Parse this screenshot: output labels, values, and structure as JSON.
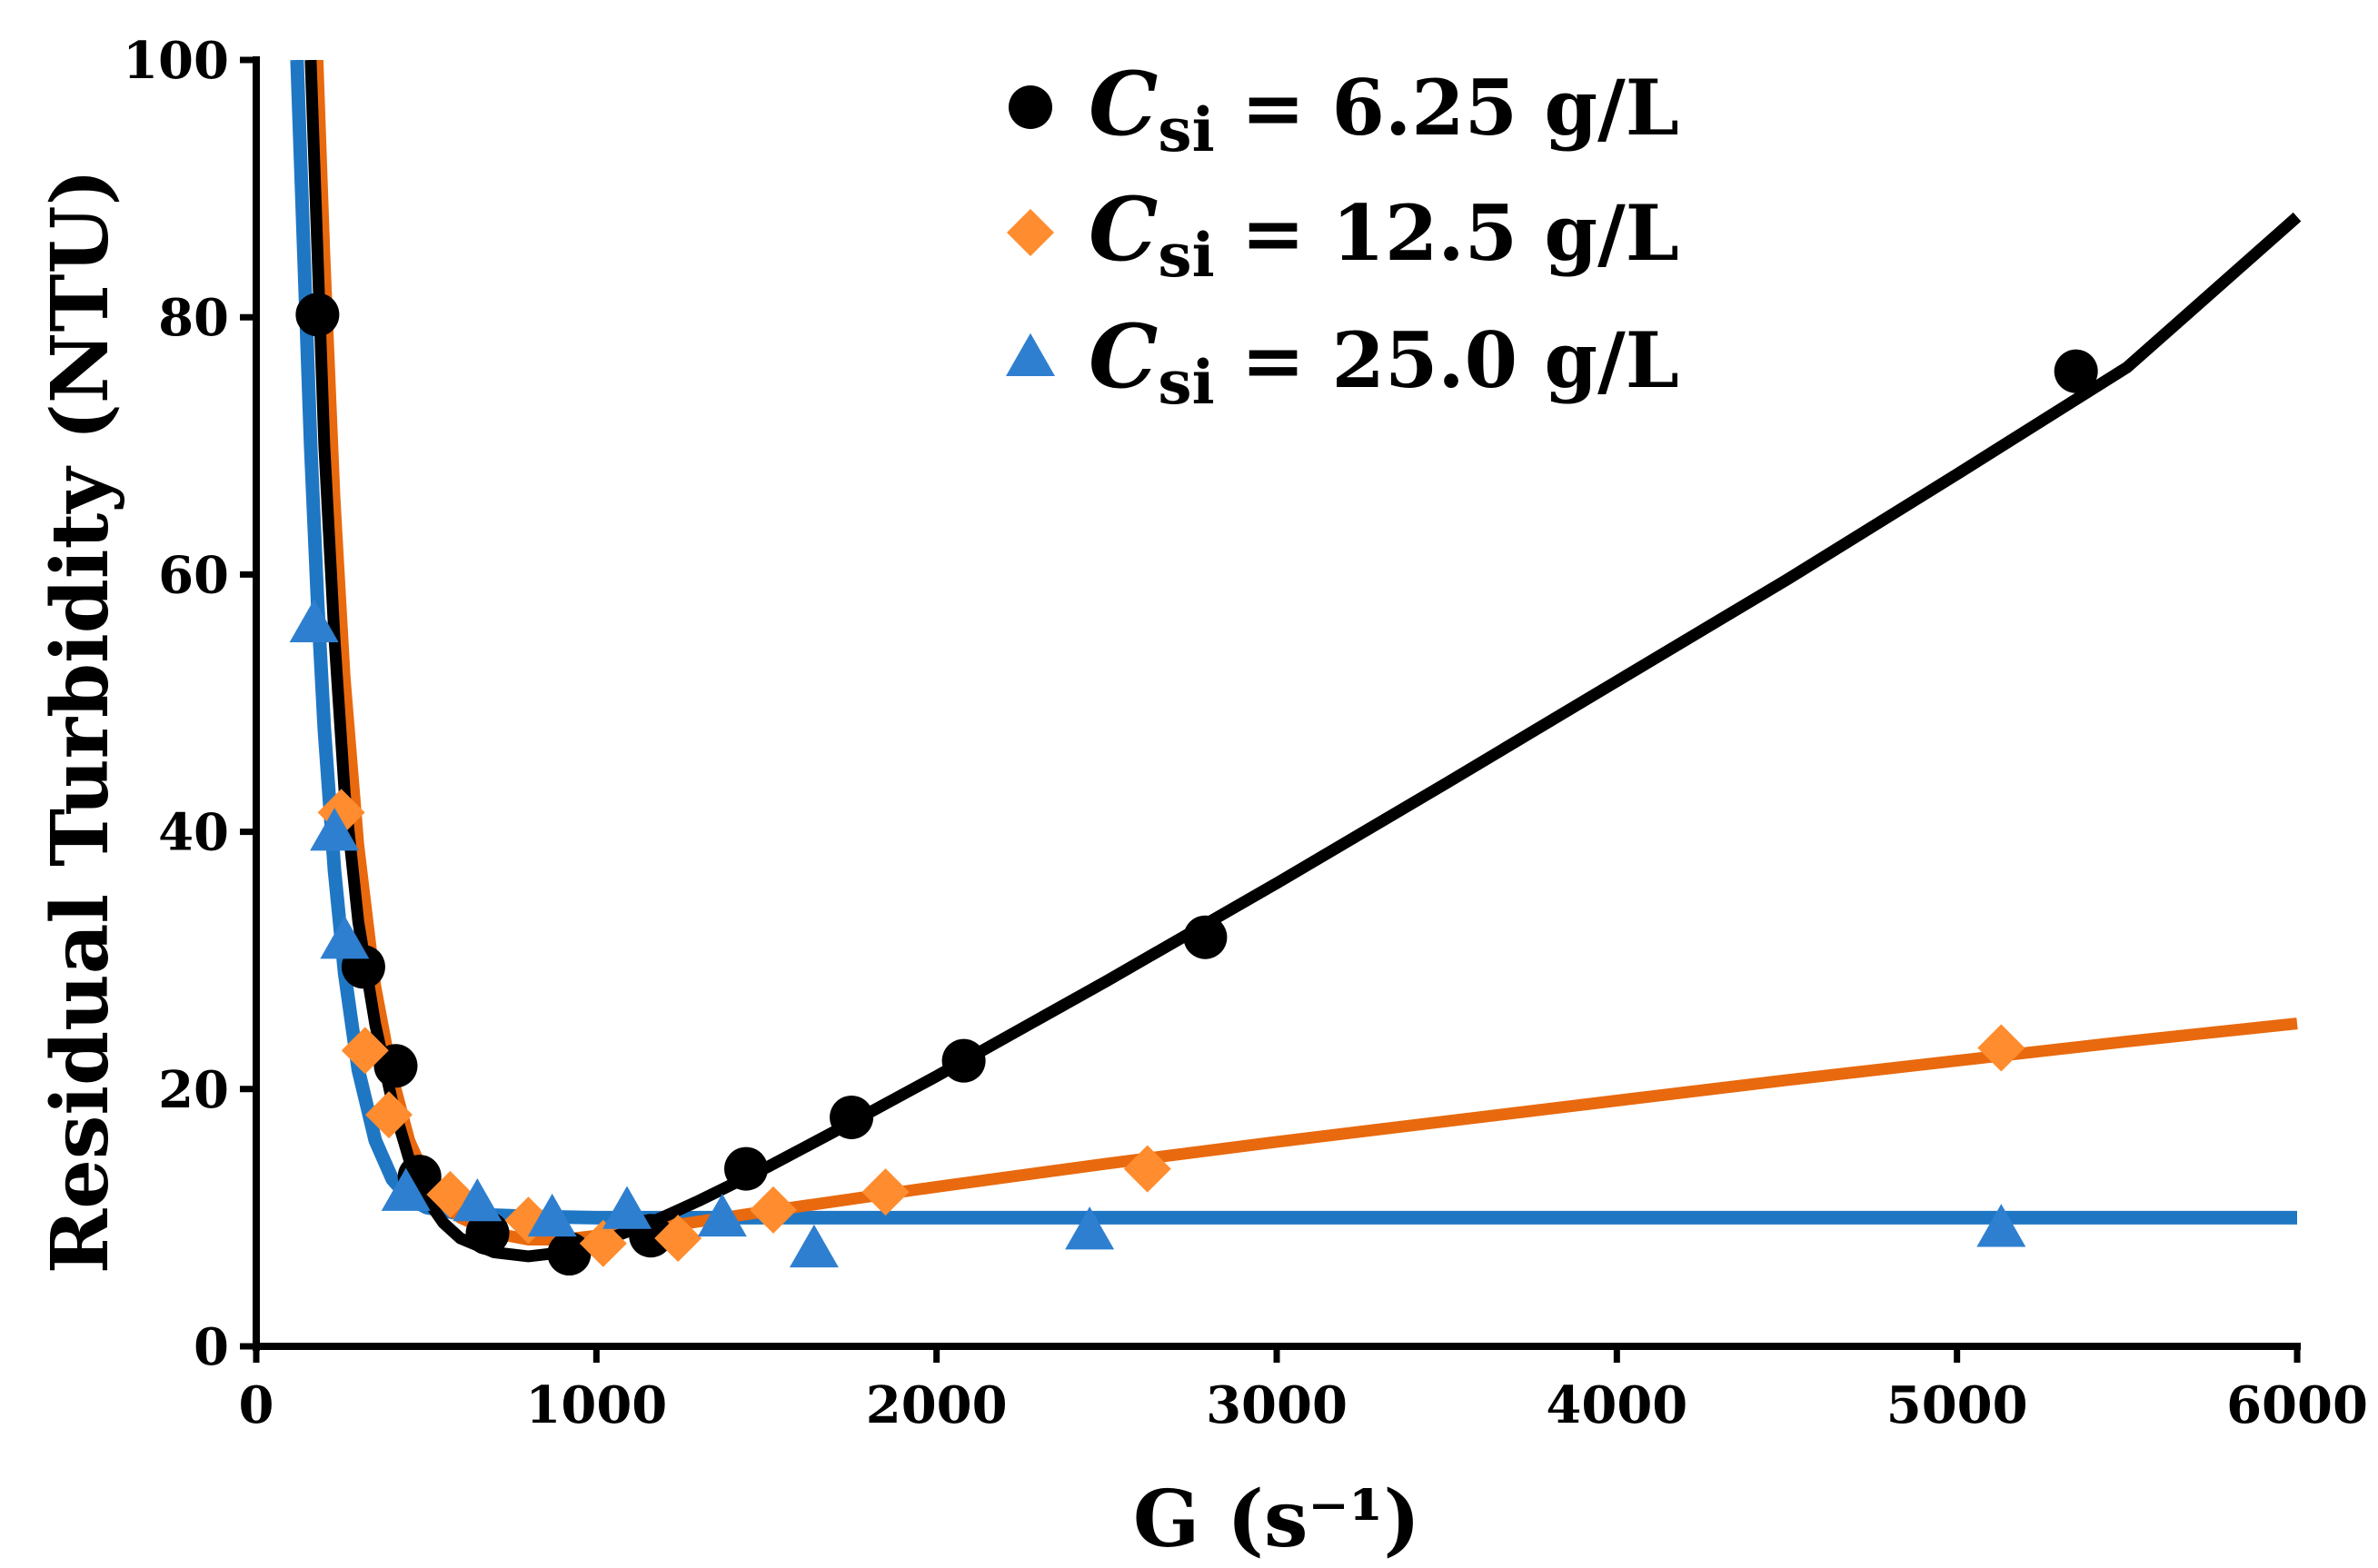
{
  "chart_data": {
    "type": "scatter",
    "title": "",
    "xlabel": "G (s⁻¹)",
    "ylabel": "Residual Turbidity (NTU)",
    "xlim": [
      0,
      6000
    ],
    "ylim": [
      0,
      100
    ],
    "xticks": [
      0,
      1000,
      2000,
      3000,
      4000,
      5000,
      6000
    ],
    "yticks": [
      0,
      20,
      40,
      60,
      80,
      100
    ],
    "xtick_labels": [
      "0",
      "1000",
      "2000",
      "3000",
      "4000",
      "5000",
      "6000"
    ],
    "ytick_labels": [
      "0",
      "20",
      "40",
      "60",
      "80",
      "100"
    ],
    "grid": false,
    "legend_position": "top-center",
    "series": [
      {
        "name": "Csi = 6.25 g/L",
        "legend_symbol": "C",
        "legend_subscript": "si",
        "legend_value": " = 6.25 g/L",
        "color": "#000000",
        "marker": "circle",
        "points": [
          [
            180,
            80.2
          ],
          [
            315,
            29.5
          ],
          [
            410,
            21.8
          ],
          [
            480,
            13.2
          ],
          [
            680,
            8.8
          ],
          [
            920,
            7.2
          ],
          [
            1160,
            8.6
          ],
          [
            1440,
            13.8
          ],
          [
            1750,
            17.8
          ],
          [
            2080,
            22.2
          ],
          [
            2790,
            31.8
          ],
          [
            5350,
            75.8
          ]
        ],
        "fit": [
          [
            160,
            100
          ],
          [
            180,
            85
          ],
          [
            200,
            70
          ],
          [
            230,
            55
          ],
          [
            260,
            43
          ],
          [
            300,
            33
          ],
          [
            350,
            25
          ],
          [
            400,
            19
          ],
          [
            450,
            14.5
          ],
          [
            500,
            11.5
          ],
          [
            550,
            9.6
          ],
          [
            600,
            8.4
          ],
          [
            700,
            7.3
          ],
          [
            800,
            7.0
          ],
          [
            900,
            7.3
          ],
          [
            1000,
            8.0
          ],
          [
            1100,
            9.0
          ],
          [
            1200,
            10.1
          ],
          [
            1300,
            11.3
          ],
          [
            1500,
            13.9
          ],
          [
            1700,
            16.7
          ],
          [
            2000,
            21.0
          ],
          [
            2500,
            28.4
          ],
          [
            3000,
            36.0
          ],
          [
            3500,
            43.8
          ],
          [
            4000,
            51.7
          ],
          [
            4500,
            59.6
          ],
          [
            5000,
            67.8
          ],
          [
            5500,
            76.1
          ],
          [
            6000,
            87.8
          ]
        ]
      },
      {
        "name": "Csi = 12.5 g/L",
        "legend_symbol": "C",
        "legend_subscript": "si",
        "legend_value": " = 12.5 g/L",
        "color": "#FF8C2E",
        "fit_color": "#E8690E",
        "marker": "diamond",
        "points": [
          [
            250,
            41.5
          ],
          [
            320,
            23.0
          ],
          [
            390,
            18.0
          ],
          [
            570,
            11.8
          ],
          [
            800,
            9.8
          ],
          [
            1020,
            8.0
          ],
          [
            1240,
            8.4
          ],
          [
            1520,
            10.6
          ],
          [
            1850,
            12.0
          ],
          [
            2620,
            13.8
          ],
          [
            5130,
            23.2
          ]
        ],
        "fit": [
          [
            180,
            100
          ],
          [
            200,
            85
          ],
          [
            230,
            66
          ],
          [
            260,
            52
          ],
          [
            300,
            39
          ],
          [
            350,
            28
          ],
          [
            400,
            21
          ],
          [
            450,
            16
          ],
          [
            500,
            13
          ],
          [
            550,
            11.2
          ],
          [
            600,
            10.0
          ],
          [
            700,
            8.8
          ],
          [
            800,
            8.3
          ],
          [
            900,
            8.3
          ],
          [
            1000,
            8.6
          ],
          [
            1200,
            9.3
          ],
          [
            1500,
            10.5
          ],
          [
            2000,
            12.4
          ],
          [
            2500,
            14.2
          ],
          [
            3000,
            15.9
          ],
          [
            3500,
            17.5
          ],
          [
            4000,
            19.1
          ],
          [
            4500,
            20.7
          ],
          [
            5000,
            22.2
          ],
          [
            5500,
            23.7
          ],
          [
            6000,
            25.1
          ]
        ]
      },
      {
        "name": "Csi = 25.0 g/L",
        "legend_symbol": "C",
        "legend_subscript": "si",
        "legend_value": " = 25.0 g/L",
        "color": "#2F7FD0",
        "fit_color": "#1F77C4",
        "marker": "triangle",
        "points": [
          [
            170,
            56.0
          ],
          [
            230,
            39.8
          ],
          [
            260,
            31.4
          ],
          [
            440,
            11.8
          ],
          [
            650,
            11.0
          ],
          [
            870,
            9.8
          ],
          [
            1090,
            10.4
          ],
          [
            1370,
            9.8
          ],
          [
            1640,
            7.4
          ],
          [
            2450,
            8.8
          ],
          [
            5130,
            9.0
          ]
        ],
        "fit": [
          [
            120,
            100
          ],
          [
            140,
            85
          ],
          [
            160,
            70
          ],
          [
            180,
            58
          ],
          [
            200,
            48
          ],
          [
            230,
            37
          ],
          [
            260,
            29
          ],
          [
            300,
            21.5
          ],
          [
            350,
            16
          ],
          [
            400,
            13
          ],
          [
            450,
            11.5
          ],
          [
            500,
            10.8
          ],
          [
            600,
            10.3
          ],
          [
            800,
            10.1
          ],
          [
            1000,
            10.0
          ],
          [
            2000,
            10.0
          ],
          [
            3000,
            10.0
          ],
          [
            4000,
            10.0
          ],
          [
            5000,
            10.0
          ],
          [
            6000,
            10.0
          ]
        ]
      }
    ]
  }
}
